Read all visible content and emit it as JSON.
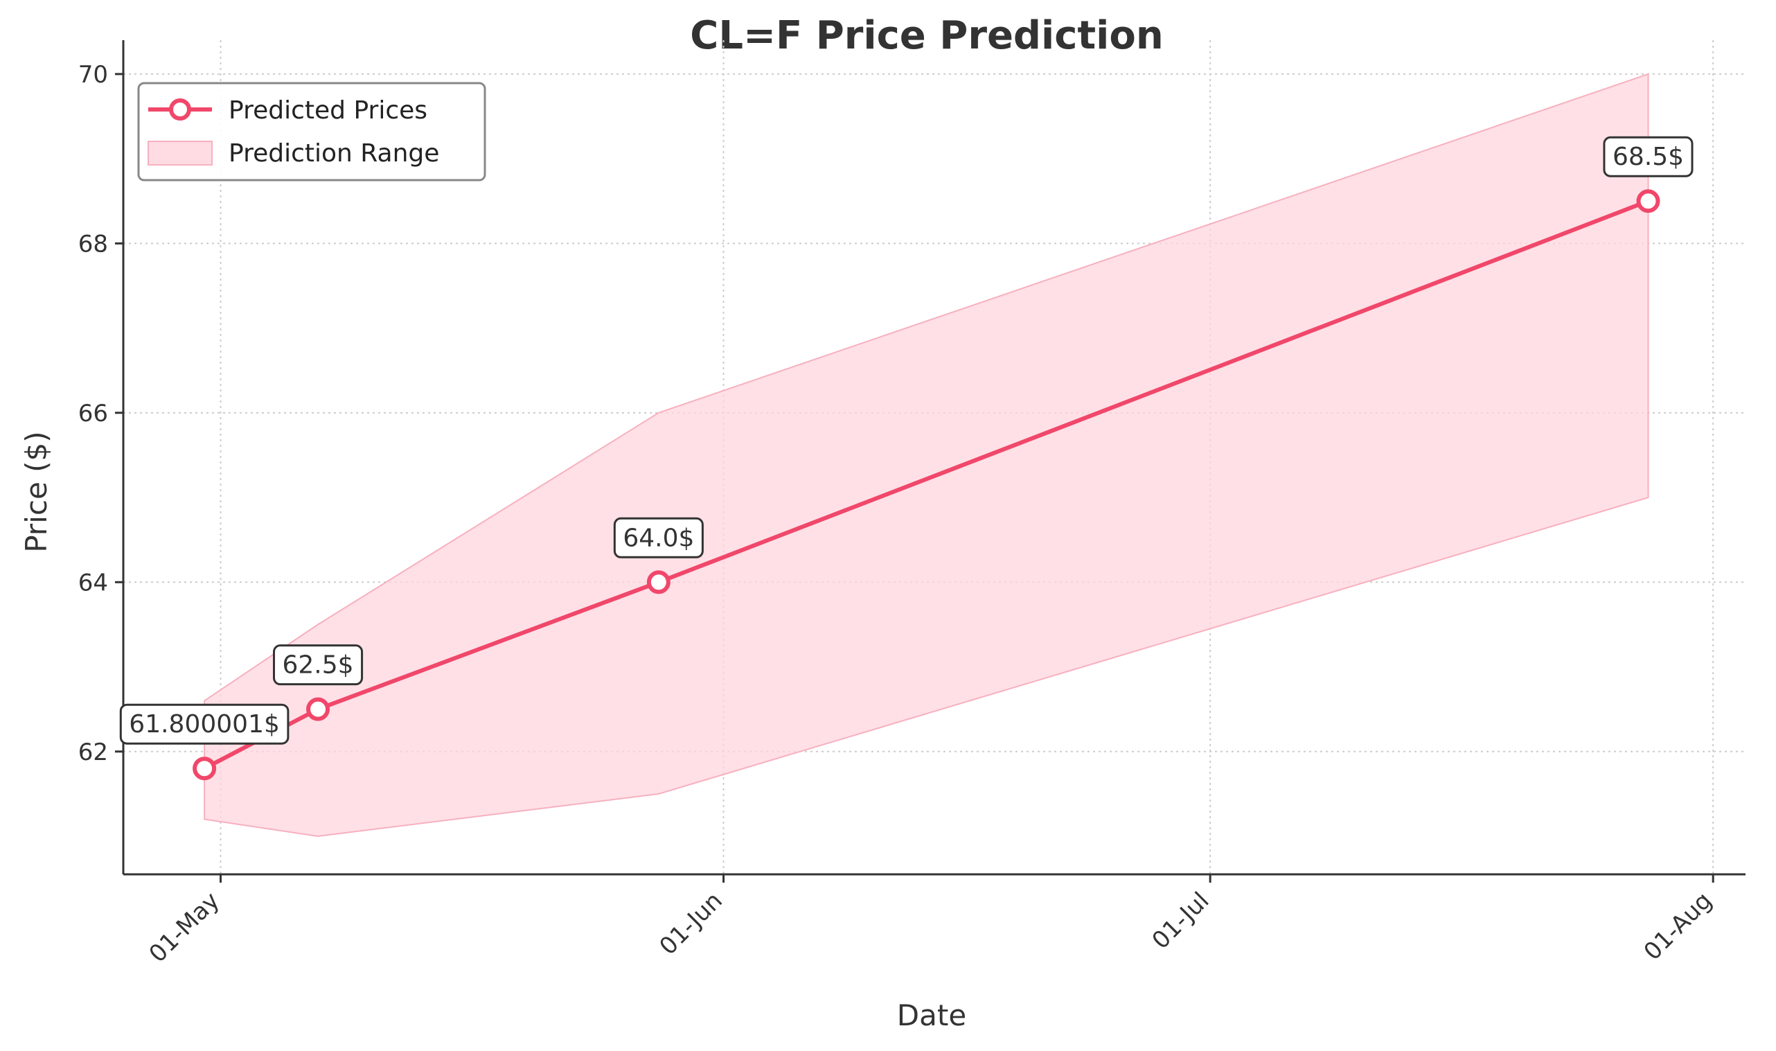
{
  "chart_data": {
    "type": "line",
    "title": "CL=F Price Prediction",
    "xlabel": "Date",
    "ylabel": "Price ($)",
    "x_ticks": [
      "01-May",
      "01-Jun",
      "01-Jul",
      "01-Aug"
    ],
    "x_tick_dates": [
      "2025-05-01",
      "2025-06-01",
      "2025-07-01",
      "2025-08-01"
    ],
    "xlim": [
      "2025-04-25",
      "2025-08-03"
    ],
    "y_ticks": [
      62,
      64,
      66,
      68,
      70
    ],
    "ylim": [
      60.55,
      70.4
    ],
    "grid": true,
    "legend_position": "top-left",
    "colors": {
      "line": "#f0476a",
      "fill": "#ffd6de",
      "fill_edge": "#f7b0bf",
      "grid": "#cccccc",
      "axis": "#333333"
    },
    "series": [
      {
        "name": "Predicted Prices",
        "x": [
          "2025-04-30",
          "2025-05-07",
          "2025-05-28",
          "2025-07-28"
        ],
        "values": [
          61.800001,
          62.5,
          64.0,
          68.5
        ],
        "labels": [
          "61.800001$",
          "62.5$",
          "64.0$",
          "68.5$"
        ]
      }
    ],
    "range": {
      "name": "Prediction Range",
      "x": [
        "2025-04-30",
        "2025-05-07",
        "2025-05-28",
        "2025-07-28"
      ],
      "upper": [
        62.6,
        63.5,
        66.0,
        70.0
      ],
      "lower": [
        61.2,
        61.0,
        61.5,
        65.0
      ]
    }
  }
}
